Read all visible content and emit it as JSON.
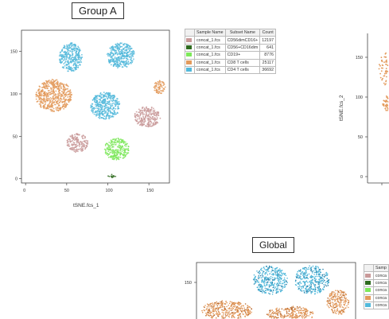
{
  "chart_data": [
    {
      "type": "scatter",
      "title": "Group A",
      "xlabel": "tSNE.fcs_1",
      "ylabel": "",
      "xlim": [
        -5,
        175
      ],
      "ylim": [
        -5,
        175
      ],
      "x_ticks": [
        "0",
        "50",
        "100",
        "150"
      ],
      "y_ticks": [
        "0",
        "50",
        "100",
        "150"
      ],
      "legend": {
        "headers": [
          "Sample Name",
          "Subset Name",
          "Count"
        ],
        "rows": [
          {
            "sample": "concat_1.fcs",
            "subset": "CD56dimCD16+",
            "count": "12197",
            "color": "#c99a9a"
          },
          {
            "sample": "concat_1.fcs",
            "subset": "CD56+CD16dim",
            "count": "641",
            "color": "#2f6b1f"
          },
          {
            "sample": "concat_1.fcs",
            "subset": "CD19+",
            "count": "8776",
            "color": "#7de85a"
          },
          {
            "sample": "concat_1.fcs",
            "subset": "CD8 T cells",
            "count": "25117",
            "color": "#e39a5c"
          },
          {
            "sample": "concat_1.fcs",
            "subset": "CD4 T cells",
            "count": "36692",
            "color": "#52b9db"
          }
        ]
      },
      "clusters": [
        {
          "subset": "CD4 T cells",
          "center": [
            55,
            143
          ],
          "spread": [
            14,
            17
          ]
        },
        {
          "subset": "CD4 T cells",
          "center": [
            116,
            145
          ],
          "spread": [
            17,
            15
          ]
        },
        {
          "subset": "CD4 T cells",
          "center": [
            97,
            86
          ],
          "spread": [
            18,
            16
          ]
        },
        {
          "subset": "CD8 T cells",
          "center": [
            34,
            98
          ],
          "spread": [
            22,
            19
          ]
        },
        {
          "subset": "CD8 T cells",
          "center": [
            163,
            108
          ],
          "spread": [
            7,
            8
          ]
        },
        {
          "subset": "CD56dimCD16+",
          "center": [
            148,
            73
          ],
          "spread": [
            16,
            12
          ]
        },
        {
          "subset": "CD56dimCD16+",
          "center": [
            63,
            42
          ],
          "spread": [
            13,
            11
          ]
        },
        {
          "subset": "CD19+",
          "center": [
            111,
            35
          ],
          "spread": [
            15,
            13
          ]
        },
        {
          "subset": "CD56+CD16dim",
          "center": [
            105,
            3
          ],
          "spread": [
            5,
            2
          ]
        }
      ]
    },
    {
      "type": "scatter",
      "title": "",
      "xlabel": "",
      "ylabel": "tSNE.fcs_2",
      "y_ticks": [
        "0",
        "50",
        "100",
        "150"
      ]
    },
    {
      "type": "scatter",
      "title": "Global",
      "y_ticks": [
        "150"
      ],
      "legend": {
        "headers": [
          "Samp"
        ],
        "rows": [
          {
            "sample": "conca",
            "color": "#c99a9a"
          },
          {
            "sample": "conca",
            "color": "#2f6b1f"
          },
          {
            "sample": "conca",
            "color": "#7de85a"
          },
          {
            "sample": "conca",
            "color": "#e39a5c"
          },
          {
            "sample": "conca",
            "color": "#52b9db"
          }
        ]
      }
    }
  ]
}
